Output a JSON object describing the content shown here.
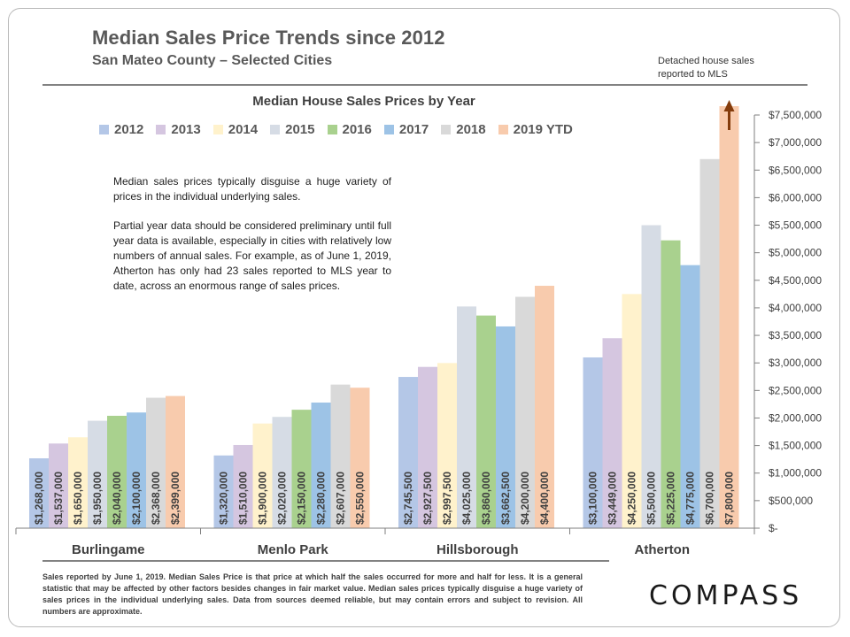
{
  "header": {
    "title": "Median Sales Price Trends since 2012",
    "subtitle": "San Mateo County – Selected Cities",
    "note_line1": "Detached house sales",
    "note_line2": "reported to MLS"
  },
  "description": {
    "para1": "Median sales prices typically disguise a huge variety of prices in the individual underlying sales.",
    "para2": "Partial year data should be considered preliminary until full year data is available, especially in cities with relatively low numbers of annual sales. For example, as of June 1, 2019, Atherton has only had 23 sales reported to MLS year to date, across an enormous range of sales prices."
  },
  "footer": {
    "text": "Sales reported by June 1, 2019. Median Sales Price is that price at which half the sales occurred for more and half for less. It is a general statistic that may be affected by other factors besides changes in fair market value. Median sales prices typically disguise a huge variety of sales prices in the individual underlying sales. Data from sources deemed reliable, but may contain errors and subject to revision.  All numbers are approximate."
  },
  "brand": {
    "logo_text": "COMPASS"
  },
  "chart_data": {
    "type": "bar",
    "title": "Median House Sales Prices by Year",
    "categories": [
      "Burlingame",
      "Menlo Park",
      "Hillsborough",
      "Atherton"
    ],
    "ylim": [
      0,
      7500000
    ],
    "ytick_step": 500000,
    "yticks": [
      "$-",
      "$500,000",
      "$1,000,000",
      "$1,500,000",
      "$2,000,000",
      "$2,500,000",
      "$3,000,000",
      "$3,500,000",
      "$4,000,000",
      "$4,500,000",
      "$5,000,000",
      "$5,500,000",
      "$6,000,000",
      "$6,500,000",
      "$7,000,000",
      "$7,500,000"
    ],
    "grid": false,
    "legend_position": "top",
    "series": [
      {
        "name": "2012",
        "color": "#b4c7e7",
        "values": [
          1268000,
          1320000,
          2745500,
          3100000
        ],
        "labels": [
          "$1,268,000",
          "$1,320,000",
          "$2,745,500",
          "$3,100,000"
        ]
      },
      {
        "name": "2013",
        "color": "#d5c6e0",
        "values": [
          1537000,
          1510000,
          2927500,
          3449000
        ],
        "labels": [
          "$1,537,000",
          "$1,510,000",
          "$2,927,500",
          "$3,449,000"
        ]
      },
      {
        "name": "2014",
        "color": "#fff2cc",
        "values": [
          1650000,
          1900000,
          2997500,
          4250000
        ],
        "labels": [
          "$1,650,000",
          "$1,900,000",
          "$2,997,500",
          "$4,250,000"
        ]
      },
      {
        "name": "2015",
        "color": "#d6dce5",
        "values": [
          1950000,
          2020000,
          4025000,
          5500000
        ],
        "labels": [
          "$1,950,000",
          "$2,020,000",
          "$4,025,000",
          "$5,500,000"
        ]
      },
      {
        "name": "2016",
        "color": "#a9d18e",
        "values": [
          2040000,
          2150000,
          3860000,
          5225000
        ],
        "labels": [
          "$2,040,000",
          "$2,150,000",
          "$3,860,000",
          "$5,225,000"
        ]
      },
      {
        "name": "2017",
        "color": "#9dc3e6",
        "values": [
          2100000,
          2280000,
          3662500,
          4775000
        ],
        "labels": [
          "$2,100,000",
          "$2,280,000",
          "$3,662,500",
          "$4,775,000"
        ]
      },
      {
        "name": "2018",
        "color": "#d9d9d9",
        "values": [
          2368000,
          2607000,
          4200000,
          6700000
        ],
        "labels": [
          "$2,368,000",
          "$2,607,000",
          "$4,200,000",
          "$6,700,000"
        ]
      },
      {
        "name": "2019 YTD",
        "color": "#f8cbad",
        "values": [
          2399000,
          2550000,
          4400000,
          7800000
        ],
        "labels": [
          "$2,399,000",
          "$2,550,000",
          "$4,400,000",
          "$7,800,000"
        ]
      }
    ],
    "arrow_color": "#843c0c"
  }
}
